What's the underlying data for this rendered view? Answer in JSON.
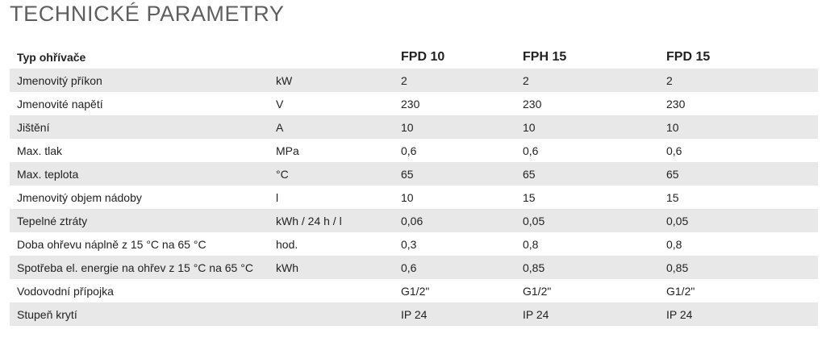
{
  "title": "TECHNICKÉ PARAMETRY",
  "table": {
    "header": {
      "parameter": "Typ ohřívače",
      "unit": "",
      "models": [
        "FPD 10",
        "FPH 15",
        "FPD 15"
      ]
    },
    "rows": [
      {
        "parameter": "Jmenovitý příkon",
        "unit": "kW",
        "values": [
          "2",
          "2",
          "2"
        ]
      },
      {
        "parameter": "Jmenovité napětí",
        "unit": "V",
        "values": [
          "230",
          "230",
          "230"
        ]
      },
      {
        "parameter": "Jištění",
        "unit": "A",
        "values": [
          "10",
          "10",
          "10"
        ]
      },
      {
        "parameter": "Max. tlak",
        "unit": "MPa",
        "values": [
          "0,6",
          "0,6",
          "0,6"
        ]
      },
      {
        "parameter": "Max. teplota",
        "unit": "°C",
        "values": [
          "65",
          "65",
          "65"
        ]
      },
      {
        "parameter": "Jmenovitý objem nádoby",
        "unit": "l",
        "values": [
          "10",
          "15",
          "15"
        ]
      },
      {
        "parameter": "Tepelné ztráty",
        "unit": "kWh / 24 h / l",
        "values": [
          "0,06",
          "0,05",
          "0,05"
        ]
      },
      {
        "parameter": "Doba ohřevu náplně z 15 °C na 65 °C",
        "unit": "hod.",
        "values": [
          "0,3",
          "0,8",
          "0,8"
        ]
      },
      {
        "parameter": "Spotřeba el. energie na ohřev z 15 °C na 65 °C",
        "unit": "kWh",
        "values": [
          "0,6",
          "0,85",
          "0,85"
        ]
      },
      {
        "parameter": "Vodovodní přípojka",
        "unit": "",
        "values": [
          "G1/2\"",
          "G1/2\"",
          "G1/2\""
        ]
      },
      {
        "parameter": "Stupeň krytí",
        "unit": "",
        "values": [
          "IP 24",
          "IP 24",
          "IP 24"
        ]
      }
    ]
  }
}
